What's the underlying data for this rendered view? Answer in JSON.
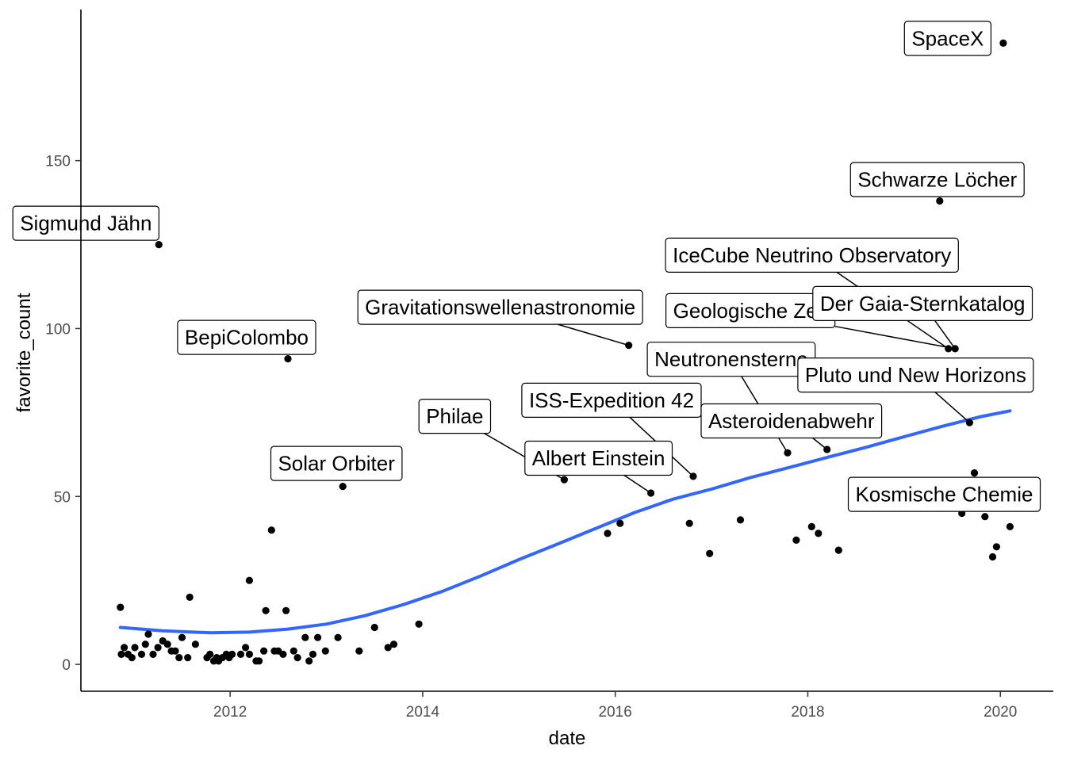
{
  "chart_data": {
    "type": "scatter",
    "xlabel": "date",
    "ylabel": "favorite_count",
    "xlim": [
      2010.45,
      2020.55
    ],
    "ylim": [
      -8,
      195
    ],
    "x_ticks": [
      2012,
      2014,
      2016,
      2018,
      2020
    ],
    "x_tick_labels": [
      "2012",
      "2014",
      "2016",
      "2018",
      "2020"
    ],
    "y_ticks": [
      0,
      50,
      100,
      150
    ],
    "y_tick_labels": [
      "0",
      "50",
      "100",
      "150"
    ],
    "grid": false,
    "colors": {
      "points": "#000000",
      "smooth": "#3366ff",
      "axis": "#000000"
    },
    "points": [
      {
        "x": 2010.86,
        "y": 17
      },
      {
        "x": 2010.87,
        "y": 3
      },
      {
        "x": 2010.9,
        "y": 5
      },
      {
        "x": 2010.94,
        "y": 3
      },
      {
        "x": 2010.98,
        "y": 2
      },
      {
        "x": 2011.01,
        "y": 5
      },
      {
        "x": 2011.08,
        "y": 3
      },
      {
        "x": 2011.12,
        "y": 6
      },
      {
        "x": 2011.15,
        "y": 9
      },
      {
        "x": 2011.2,
        "y": 3
      },
      {
        "x": 2011.25,
        "y": 5
      },
      {
        "x": 2011.3,
        "y": 7
      },
      {
        "x": 2011.35,
        "y": 6
      },
      {
        "x": 2011.39,
        "y": 4
      },
      {
        "x": 2011.43,
        "y": 4
      },
      {
        "x": 2011.47,
        "y": 2
      },
      {
        "x": 2011.5,
        "y": 8
      },
      {
        "x": 2011.56,
        "y": 2
      },
      {
        "x": 2011.58,
        "y": 20
      },
      {
        "x": 2011.64,
        "y": 6
      },
      {
        "x": 2011.76,
        "y": 2
      },
      {
        "x": 2011.79,
        "y": 3
      },
      {
        "x": 2011.83,
        "y": 1
      },
      {
        "x": 2011.86,
        "y": 2
      },
      {
        "x": 2011.88,
        "y": 1
      },
      {
        "x": 2011.92,
        "y": 2
      },
      {
        "x": 2011.96,
        "y": 3
      },
      {
        "x": 2012.02,
        "y": 3
      },
      {
        "x": 2011.99,
        "y": 2
      },
      {
        "x": 2012.11,
        "y": 3
      },
      {
        "x": 2012.16,
        "y": 5
      },
      {
        "x": 2012.2,
        "y": 3
      },
      {
        "x": 2012.27,
        "y": 1
      },
      {
        "x": 2012.3,
        "y": 1
      },
      {
        "x": 2012.35,
        "y": 4
      },
      {
        "x": 2012.37,
        "y": 16
      },
      {
        "x": 2012.43,
        "y": 40
      },
      {
        "x": 2012.46,
        "y": 4
      },
      {
        "x": 2012.5,
        "y": 4
      },
      {
        "x": 2012.55,
        "y": 3
      },
      {
        "x": 2012.58,
        "y": 16
      },
      {
        "x": 2012.66,
        "y": 4
      },
      {
        "x": 2012.7,
        "y": 2
      },
      {
        "x": 2012.78,
        "y": 8
      },
      {
        "x": 2012.82,
        "y": 1
      },
      {
        "x": 2012.86,
        "y": 3
      },
      {
        "x": 2012.91,
        "y": 8
      },
      {
        "x": 2012.99,
        "y": 4
      },
      {
        "x": 2013.12,
        "y": 8
      },
      {
        "x": 2013.34,
        "y": 4
      },
      {
        "x": 2013.5,
        "y": 11
      },
      {
        "x": 2013.64,
        "y": 5
      },
      {
        "x": 2013.7,
        "y": 6
      },
      {
        "x": 2013.96,
        "y": 12
      },
      {
        "x": 2012.2,
        "y": 25
      },
      {
        "x": 2015.92,
        "y": 39
      },
      {
        "x": 2016.05,
        "y": 42
      },
      {
        "x": 2016.77,
        "y": 42
      },
      {
        "x": 2016.98,
        "y": 33
      },
      {
        "x": 2017.3,
        "y": 43
      },
      {
        "x": 2017.88,
        "y": 37
      },
      {
        "x": 2018.04,
        "y": 41
      },
      {
        "x": 2018.11,
        "y": 39
      },
      {
        "x": 2018.32,
        "y": 34
      },
      {
        "x": 2019.6,
        "y": 45
      },
      {
        "x": 2019.84,
        "y": 44
      },
      {
        "x": 2019.92,
        "y": 32
      },
      {
        "x": 2019.96,
        "y": 35
      },
      {
        "x": 2020.1,
        "y": 41
      },
      {
        "x": 2011.26,
        "y": 125
      },
      {
        "x": 2012.6,
        "y": 91
      },
      {
        "x": 2013.17,
        "y": 53
      },
      {
        "x": 2015.47,
        "y": 55
      },
      {
        "x": 2016.14,
        "y": 95
      },
      {
        "x": 2016.37,
        "y": 51
      },
      {
        "x": 2016.81,
        "y": 56
      },
      {
        "x": 2017.79,
        "y": 63
      },
      {
        "x": 2018.2,
        "y": 64
      },
      {
        "x": 2019.37,
        "y": 138
      },
      {
        "x": 2019.46,
        "y": 94
      },
      {
        "x": 2019.53,
        "y": 94
      },
      {
        "x": 2019.68,
        "y": 72
      },
      {
        "x": 2019.73,
        "y": 57
      },
      {
        "x": 2020.03,
        "y": 185
      }
    ],
    "smooth": {
      "x": [
        2010.86,
        2011.3,
        2011.8,
        2012.2,
        2012.6,
        2013.0,
        2013.4,
        2013.8,
        2014.2,
        2014.6,
        2015.0,
        2015.4,
        2015.8,
        2016.2,
        2016.6,
        2017.0,
        2017.4,
        2017.8,
        2018.2,
        2018.6,
        2019.0,
        2019.4,
        2019.8,
        2020.1
      ],
      "y": [
        11,
        10,
        9.4,
        9.6,
        10.5,
        12,
        14.5,
        17.8,
        21.7,
        26.3,
        31.2,
        35.8,
        40.5,
        45.2,
        49.2,
        52.2,
        55.6,
        58.6,
        61.6,
        64.6,
        67.8,
        70.9,
        73.8,
        75.5
      ]
    },
    "annotations": [
      {
        "label": "Sigmund Jähn",
        "x": 2011.26,
        "y": 125
      },
      {
        "label": "BepiColombo",
        "x": 2012.6,
        "y": 91
      },
      {
        "label": "Solar Orbiter",
        "x": 2013.17,
        "y": 53
      },
      {
        "label": "Philae",
        "x": 2015.47,
        "y": 55
      },
      {
        "label": "Albert Einstein",
        "x": 2016.37,
        "y": 51
      },
      {
        "label": "ISS-Expedition 42",
        "x": 2016.81,
        "y": 56
      },
      {
        "label": "Gravitationswellenastronomie",
        "x": 2016.14,
        "y": 95
      },
      {
        "label": "Geologische Zeit",
        "x": 2019.53,
        "y": 94
      },
      {
        "label": "Neutronensterne",
        "x": 2017.79,
        "y": 63
      },
      {
        "label": "Asteroidenabwehr",
        "x": 2018.2,
        "y": 64
      },
      {
        "label": "IceCube Neutrino Observatory",
        "x": 2019.46,
        "y": 94
      },
      {
        "label": "Der Gaia-Sternkatalog",
        "x": 2019.53,
        "y": 94
      },
      {
        "label": "Pluto und New Horizons",
        "x": 2019.68,
        "y": 72
      },
      {
        "label": "Kosmische Chemie",
        "x": 2019.73,
        "y": 57
      },
      {
        "label": "Schwarze Löcher",
        "x": 2019.37,
        "y": 138
      },
      {
        "label": "SpaceX",
        "x": 2020.03,
        "y": 185
      }
    ]
  }
}
